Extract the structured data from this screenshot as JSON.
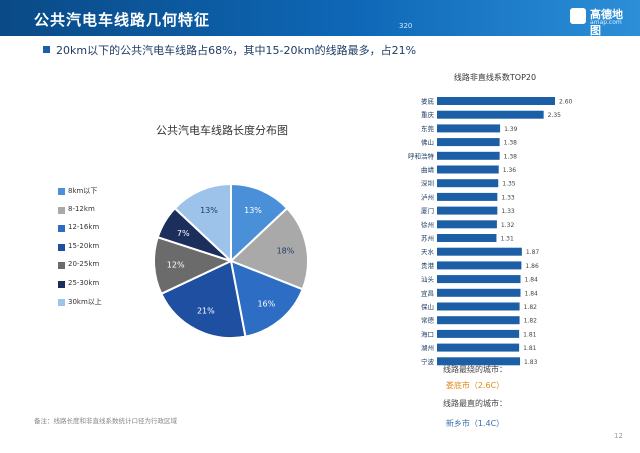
{
  "header": {
    "title": "公共汽电车线路几何特征",
    "pill": "320",
    "logo_text": "高德地图",
    "logo_sub": "amap.com"
  },
  "subtitle": "20km以下的公共汽电车线路占68%，其中15-20km的线路最多，占21%",
  "pie": {
    "title": "公共汽电车线路长度分布图"
  },
  "bar": {
    "title": "线路非直线系数TOP20"
  },
  "conclusions": {
    "most_curved_label": "线路最绕的城市：",
    "most_curved_value": "娄底市（2.6C）",
    "most_straight_label": "线路最直的城市：",
    "most_straight_value": "新乡市（1.4C）"
  },
  "note": "备注：线路长度和非直线系数统计口径为行政区域",
  "page_number": "12",
  "colors": {
    "header": "#0e67b6",
    "bar": "#1d5fa6",
    "accent_orange": "#e08a1a"
  },
  "chart_data": [
    {
      "type": "pie",
      "title": "公共汽电车线路长度分布图",
      "legend": "left",
      "slices": [
        {
          "label": "8km以下",
          "value": 13,
          "display": "13%",
          "color": "#4a90d9"
        },
        {
          "label": "8-12km",
          "value": 18,
          "display": "18%",
          "color": "#a9a9a9"
        },
        {
          "label": "12-16km",
          "value": 16,
          "display": "16%",
          "color": "#2e6dc4"
        },
        {
          "label": "15-20km",
          "value": 21,
          "display": "21%",
          "color": "#1e4fa0"
        },
        {
          "label": "20-25km",
          "value": 12,
          "display": "12%",
          "color": "#6b6b6b"
        },
        {
          "label": "25-30km",
          "value": 7,
          "display": "7%",
          "color": "#1b2e5c"
        },
        {
          "label": "30km以上",
          "value": 13,
          "display": "13%",
          "color": "#9ec3ea"
        }
      ]
    },
    {
      "type": "bar",
      "orientation": "horizontal",
      "title": "线路非直线系数TOP20",
      "categories": [
        "娄底",
        "重庆",
        "东莞",
        "佛山",
        "呼和浩特",
        "曲靖",
        "深圳",
        "泸州",
        "厦门",
        "徐州",
        "苏州",
        "天水",
        "贵港",
        "汕头",
        "宜昌",
        "保山",
        "常德",
        "海口",
        "湖州",
        "宁波"
      ],
      "values": [
        2.6,
        2.35,
        1.39,
        1.38,
        1.38,
        1.36,
        1.35,
        1.33,
        1.33,
        1.32,
        1.31,
        1.87,
        1.86,
        1.84,
        1.84,
        1.82,
        1.82,
        1.81,
        1.81,
        1.83
      ],
      "value_labels": [
        "2.60",
        "2.35",
        "1.39",
        "1.38",
        "1.38",
        "1.36",
        "1.35",
        "1.33",
        "1.33",
        "1.32",
        "1.31",
        "1.87",
        "1.86",
        "1.84",
        "1.84",
        "1.82",
        "1.82",
        "1.81",
        "1.81",
        "1.83"
      ],
      "xlim": [
        0,
        2.6
      ],
      "grid": false
    }
  ]
}
